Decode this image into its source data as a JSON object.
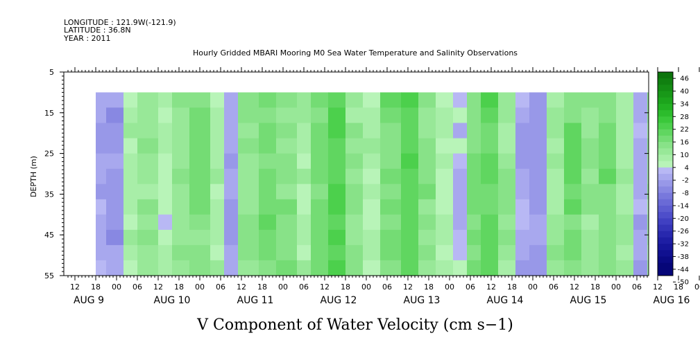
{
  "header": {
    "longitude": "LONGITUDE : 121.9W(-121.9)",
    "latitude": "LATITUDE : 36.8N",
    "year": "YEAR : 2011",
    "title": "Hourly Gridded MBARI Mooring M0 Sea Water Temperature and Salinity Observations"
  },
  "chart_data": {
    "type": "heatmap",
    "title": "Hourly Gridded MBARI Mooring M0 Sea Water Temperature and Salinity Observations",
    "xlabel": "V Component of Water Velocity (cm s−1)",
    "ylabel": "DEPTH (m)",
    "ylim": [
      5,
      55
    ],
    "y_reversed": true,
    "y_ticks": [
      "5",
      "15",
      "25",
      "35",
      "45",
      "55"
    ],
    "x_hour_ticks": [
      "12",
      "18",
      "00",
      "06",
      "12",
      "18",
      "00",
      "06",
      "12",
      "18",
      "00",
      "06",
      "12",
      "18",
      "00",
      "06",
      "12",
      "18",
      "00",
      "06",
      "12",
      "18",
      "00",
      "06",
      "12",
      "18",
      "00",
      "06",
      "12",
      "18",
      "00",
      "06"
    ],
    "x_day_labels": [
      "AUG  9",
      "AUG 10",
      "AUG 11",
      "AUG 12",
      "AUG 13",
      "AUG 14",
      "AUG 15",
      "AUG 16"
    ],
    "data_depth_range": [
      10,
      55
    ],
    "colorbar": {
      "labels": [
        "46",
        "40",
        "34",
        "28",
        "22",
        "16",
        "10",
        "4",
        "-2",
        "-8",
        "-14",
        "-20",
        "-26",
        "-32",
        "-38",
        "-44",
        "-50"
      ],
      "min": -50,
      "max": 46,
      "step": 3,
      "negative_colors": [
        "#b8b8f4",
        "#a8a8ee",
        "#9898e8",
        "#8888e2",
        "#7878dc",
        "#6a6ad6",
        "#5c5cd0",
        "#4e4eca",
        "#4040c2",
        "#3434b8",
        "#2828ae",
        "#1e1ea4",
        "#16169a",
        "#101090",
        "#0a0a84",
        "#060678"
      ],
      "positive_colors": [
        "#b8f4b8",
        "#a8eea8",
        "#98e898",
        "#88e288",
        "#74dc74",
        "#60d660",
        "#4cd04c",
        "#3ac83a",
        "#2cbc2c",
        "#22b022",
        "#1ca41c",
        "#189818",
        "#148c14",
        "#108010",
        "#0c740c",
        "#086808"
      ]
    },
    "bands": [
      {
        "t0": 0,
        "t1": 3,
        "v": -4
      },
      {
        "t0": 3,
        "t1": 8,
        "v": -6
      },
      {
        "t0": 8,
        "t1": 12,
        "v": 4
      },
      {
        "t0": 12,
        "t1": 18,
        "v": 8
      },
      {
        "t0": 18,
        "t1": 22,
        "v": 2
      },
      {
        "t0": 22,
        "t1": 27,
        "v": 8
      },
      {
        "t0": 27,
        "t1": 33,
        "v": 11
      },
      {
        "t0": 33,
        "t1": 37,
        "v": 4
      },
      {
        "t0": 37,
        "t1": 41,
        "v": -5
      },
      {
        "t0": 41,
        "t1": 47,
        "v": 9
      },
      {
        "t0": 47,
        "t1": 52,
        "v": 14
      },
      {
        "t0": 52,
        "t1": 58,
        "v": 10
      },
      {
        "t0": 58,
        "t1": 62,
        "v": 5
      },
      {
        "t0": 62,
        "t1": 67,
        "v": 12
      },
      {
        "t0": 67,
        "t1": 72,
        "v": 16
      },
      {
        "t0": 72,
        "t1": 77,
        "v": 8
      },
      {
        "t0": 77,
        "t1": 82,
        "v": 4
      },
      {
        "t0": 82,
        "t1": 88,
        "v": 12
      },
      {
        "t0": 88,
        "t1": 93,
        "v": 17
      },
      {
        "t0": 93,
        "t1": 98,
        "v": 10
      },
      {
        "t0": 98,
        "t1": 103,
        "v": 3
      },
      {
        "t0": 103,
        "t1": 107,
        "v": -3
      },
      {
        "t0": 107,
        "t1": 111,
        "v": 11
      },
      {
        "t0": 111,
        "t1": 116,
        "v": 15
      },
      {
        "t0": 116,
        "t1": 121,
        "v": 7
      },
      {
        "t0": 121,
        "t1": 125,
        "v": -4
      },
      {
        "t0": 125,
        "t1": 130,
        "v": -6
      },
      {
        "t0": 130,
        "t1": 135,
        "v": 6
      },
      {
        "t0": 135,
        "t1": 140,
        "v": 13
      },
      {
        "t0": 140,
        "t1": 145,
        "v": 8
      },
      {
        "t0": 145,
        "t1": 150,
        "v": 12
      },
      {
        "t0": 150,
        "t1": 155,
        "v": 5
      },
      {
        "t0": 155,
        "t1": 159,
        "v": -4
      },
      {
        "t0": 159,
        "t1": 164,
        "v": 8
      },
      {
        "t0": 164,
        "t1": 168,
        "v": 3
      },
      {
        "t0": 168,
        "t1": 172,
        "v": -6
      },
      {
        "t0": 172,
        "t1": 177,
        "v": -9
      },
      {
        "t0": 177,
        "t1": 180,
        "v": 4
      },
      {
        "t0": 180,
        "t1": 185,
        "v": -8
      },
      {
        "t0": 185,
        "t1": 189,
        "v": -12
      }
    ]
  }
}
